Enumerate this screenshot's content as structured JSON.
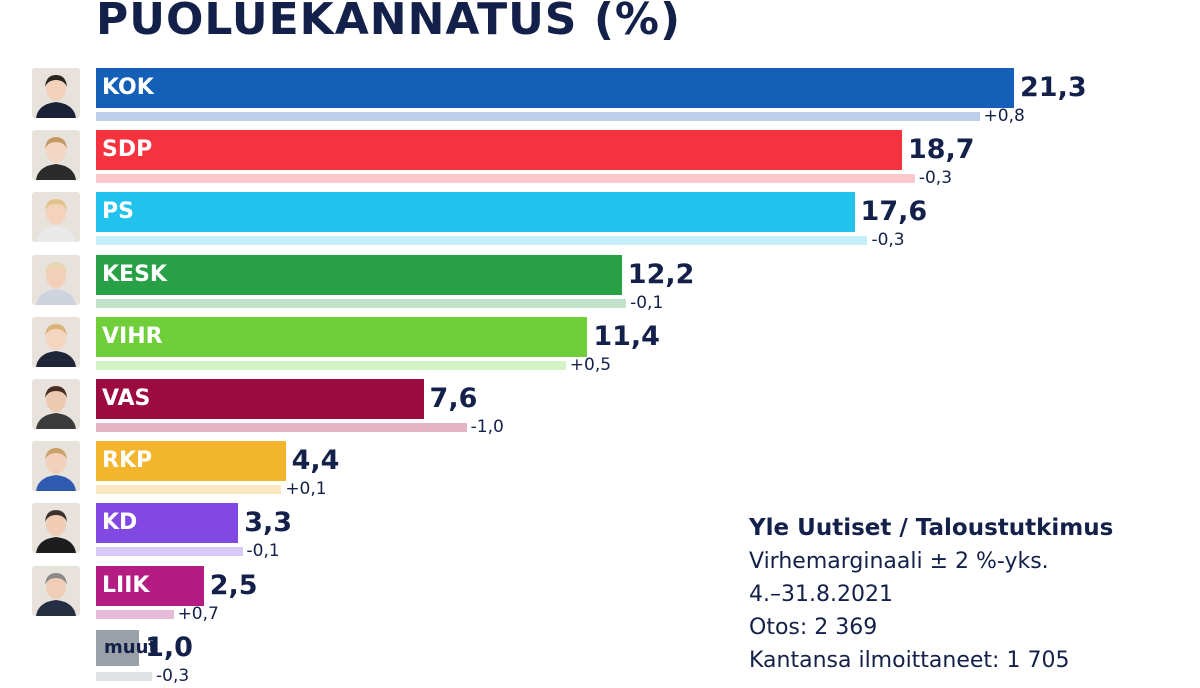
{
  "chart_data": {
    "type": "bar",
    "orientation": "horizontal",
    "title": "PUOLUEKANNATUS (%)",
    "xlabel": "",
    "ylabel": "",
    "xlim": [
      0,
      21.3
    ],
    "grid": false,
    "legend": "none",
    "categories": [
      "KOK",
      "SDP",
      "PS",
      "KESK",
      "VIHR",
      "VAS",
      "RKP",
      "KD",
      "LIIK",
      "muut"
    ],
    "series": [
      {
        "values": [
          21.3,
          18.7,
          17.6,
          12.2,
          11.4,
          7.6,
          4.4,
          3.3,
          2.5,
          1.0
        ],
        "value_labels": [
          "21,3",
          "18,7",
          "17,6",
          "12,2",
          "11,4",
          "7,6",
          "4,4",
          "3,3",
          "2,5",
          "1,0"
        ]
      },
      {
        "values": [
          20.5,
          19.0,
          17.9,
          12.3,
          10.9,
          8.6,
          4.3,
          3.4,
          1.8,
          1.3
        ]
      }
    ],
    "changes": [
      "+0,8",
      "-0,3",
      "-0,3",
      "-0,1",
      "+0,5",
      "-1,0",
      "+0,1",
      "-0,1",
      "+0,7",
      "-0,3"
    ],
    "colors": [
      "#1460b8",
      "#f5333f",
      "#21c3ec",
      "#28a146",
      "#6fcf3b",
      "#9b0b3f",
      "#f4b52e",
      "#8248e2",
      "#b41c83",
      "#9aa0a8"
    ],
    "prev_colors": [
      "#bcd0ec",
      "#fbc9cc",
      "#c4eefa",
      "#bfe2c8",
      "#d4f3c4",
      "#e3b4c4",
      "#fbe7bf",
      "#d9c9f6",
      "#e8bad9",
      "#dfe1e4"
    ],
    "avatars": [
      "person-portrait-icon",
      "person-portrait-icon",
      "person-portrait-icon",
      "person-portrait-icon",
      "person-portrait-icon",
      "person-portrait-icon",
      "person-portrait-icon",
      "person-portrait-icon",
      "person-portrait-icon",
      ""
    ]
  },
  "source": {
    "title": "Yle Uutiset / Taloustutkimus",
    "lines": [
      "Virhemarginaali ± 2 %-yks.",
      "4.–31.8.2021",
      "Otos: 2 369",
      "Kantansa ilmoittaneet: 1 705"
    ]
  }
}
